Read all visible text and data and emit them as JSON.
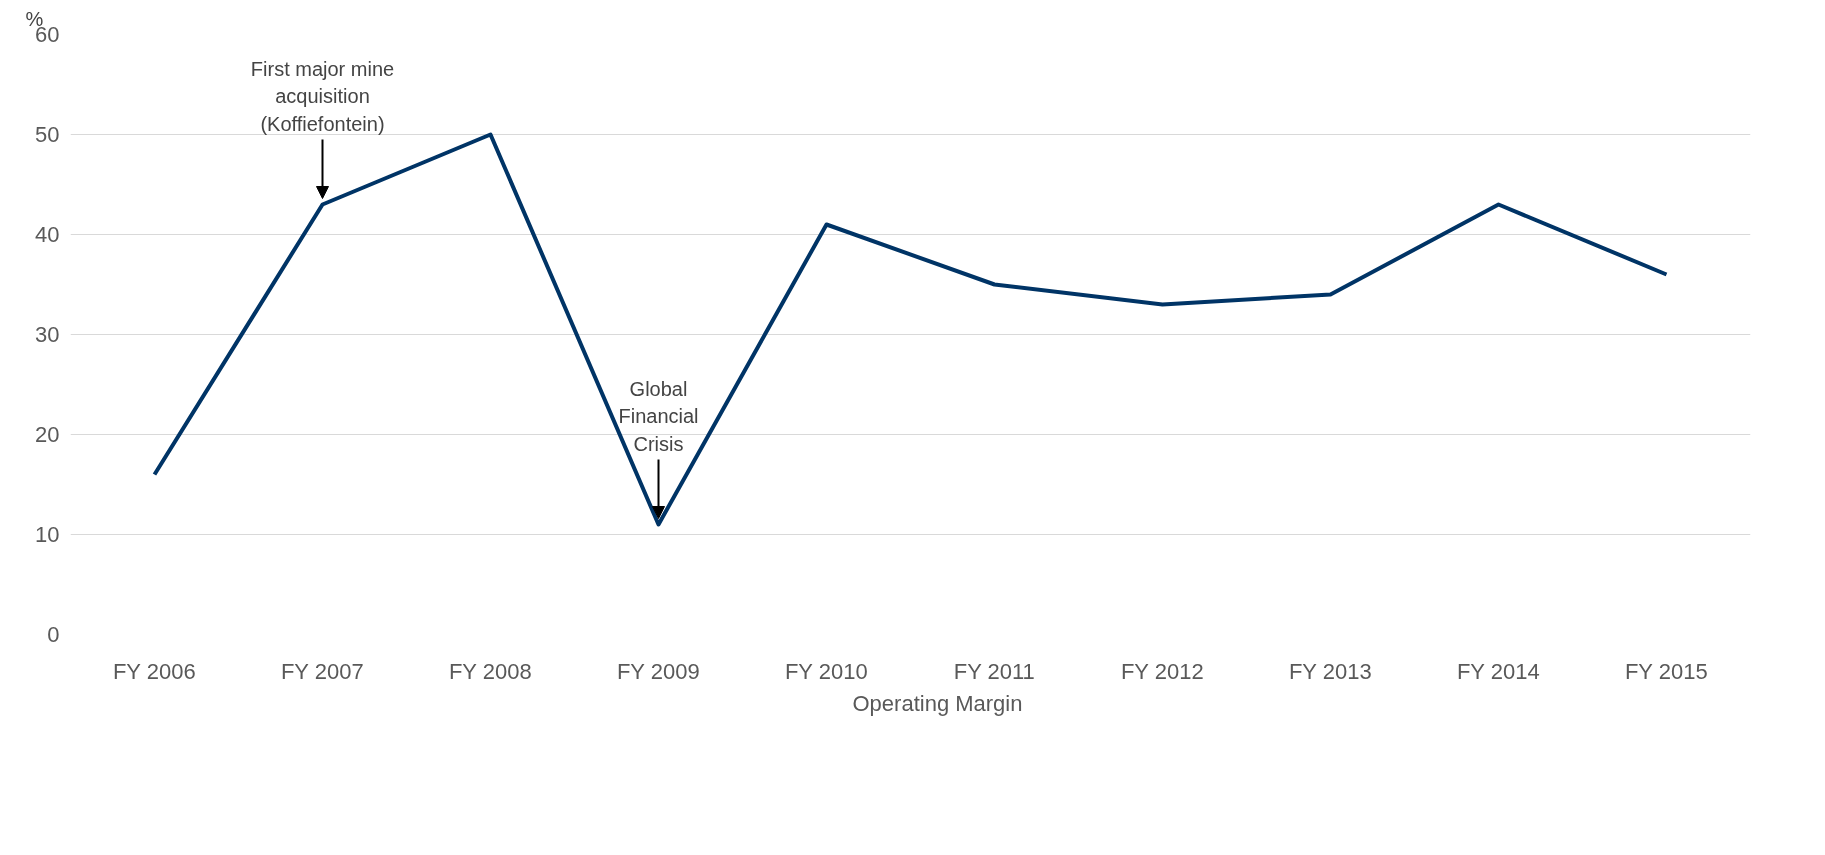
{
  "chart_data": {
    "type": "line",
    "ylabel": "%",
    "categories": [
      "FY 2006",
      "FY 2007",
      "FY 2008",
      "FY 2009",
      "FY 2010",
      "FY 2011",
      "FY 2012",
      "FY 2013",
      "FY 2014",
      "FY 2015"
    ],
    "series": [
      {
        "name": "Operating Margin",
        "color": "#003466",
        "values": [
          16,
          43,
          50,
          11,
          41,
          35,
          33,
          34,
          43,
          36
        ]
      }
    ],
    "ylim": [
      0,
      60
    ],
    "yticks": [
      0,
      10,
      20,
      30,
      40,
      50,
      60
    ],
    "grid": "y",
    "legend": "bottom",
    "marker": "none",
    "line_style": "solid",
    "annotations": [
      {
        "text": "First major mine\nacquisition\n(Koffiefontein)",
        "x": "FY 2007",
        "y": 43
      },
      {
        "text": "Global\nFinancial\nCrisis",
        "x": "FY 2009",
        "y": 11
      }
    ]
  }
}
